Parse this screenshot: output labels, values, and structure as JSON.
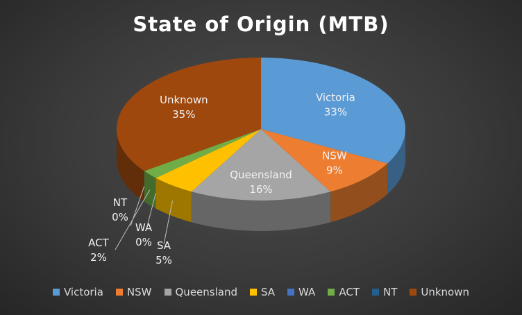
{
  "chart_data": {
    "type": "pie",
    "title": "State of Origin (MTB)",
    "categories": [
      "Victoria",
      "NSW",
      "Queensland",
      "SA",
      "WA",
      "ACT",
      "NT",
      "Unknown"
    ],
    "values": [
      33,
      9,
      16,
      5,
      0,
      2,
      0,
      35
    ],
    "value_labels": [
      "33%",
      "9%",
      "16%",
      "5%",
      "0%",
      "2%",
      "0%",
      "35%"
    ],
    "colors": [
      "#5B9BD5",
      "#ED7D31",
      "#A5A5A5",
      "#FFC000",
      "#4472C4",
      "#70AD47",
      "#255E91",
      "#9E480E"
    ],
    "legend_position": "bottom",
    "style": "3d"
  }
}
